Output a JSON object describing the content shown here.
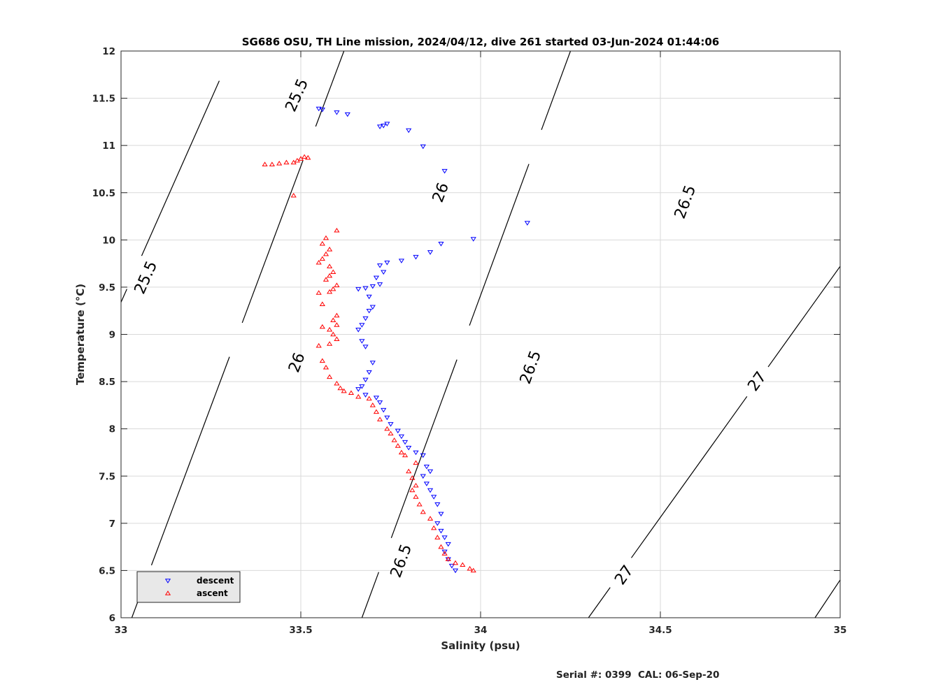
{
  "footer": {
    "serial": "Serial #: 0399  CAL: 06-Sep-20"
  },
  "colors": {
    "descent": "#0000ff",
    "ascent": "#ff0000",
    "contour": "#000000",
    "grid": "#d9d9d9",
    "legend_bg": "#e8e8e8"
  },
  "chart_data": {
    "type": "scatter",
    "title": "SG686 OSU, TH Line mission, 2024/04/12, dive 261 started 03-Jun-2024 01:44:06",
    "xlabel": "Salinity (psu)",
    "ylabel": "Temperature (°C)",
    "xlim": [
      33,
      35
    ],
    "ylim": [
      6,
      12
    ],
    "xticks": [
      "33",
      "33.5",
      "34",
      "34.5",
      "35"
    ],
    "yticks": [
      "6",
      "6.5",
      "7",
      "7.5",
      "8",
      "8.5",
      "9",
      "9.5",
      "10",
      "10.5",
      "11",
      "11.5",
      "12"
    ],
    "grid": true,
    "legend_position": "bottom-left",
    "series": [
      {
        "name": "descent",
        "marker": "triangle-down",
        "color": "#0000ff",
        "points": [
          [
            33.55,
            11.39
          ],
          [
            33.56,
            11.38
          ],
          [
            33.6,
            11.35
          ],
          [
            33.63,
            11.33
          ],
          [
            33.74,
            11.23
          ],
          [
            33.72,
            11.2
          ],
          [
            33.73,
            11.21
          ],
          [
            33.8,
            11.16
          ],
          [
            33.84,
            10.99
          ],
          [
            33.9,
            10.73
          ],
          [
            34.13,
            10.18
          ],
          [
            33.98,
            10.01
          ],
          [
            33.89,
            9.96
          ],
          [
            33.86,
            9.87
          ],
          [
            33.82,
            9.82
          ],
          [
            33.78,
            9.78
          ],
          [
            33.74,
            9.76
          ],
          [
            33.72,
            9.73
          ],
          [
            33.73,
            9.66
          ],
          [
            33.71,
            9.6
          ],
          [
            33.72,
            9.53
          ],
          [
            33.7,
            9.51
          ],
          [
            33.68,
            9.49
          ],
          [
            33.66,
            9.48
          ],
          [
            33.69,
            9.4
          ],
          [
            33.7,
            9.29
          ],
          [
            33.69,
            9.25
          ],
          [
            33.68,
            9.17
          ],
          [
            33.67,
            9.1
          ],
          [
            33.66,
            9.05
          ],
          [
            33.67,
            8.93
          ],
          [
            33.68,
            8.87
          ],
          [
            33.7,
            8.7
          ],
          [
            33.69,
            8.6
          ],
          [
            33.68,
            8.52
          ],
          [
            33.67,
            8.45
          ],
          [
            33.66,
            8.42
          ],
          [
            33.68,
            8.36
          ],
          [
            33.71,
            8.33
          ],
          [
            33.72,
            8.28
          ],
          [
            33.73,
            8.2
          ],
          [
            33.74,
            8.12
          ],
          [
            33.75,
            8.05
          ],
          [
            33.77,
            7.98
          ],
          [
            33.78,
            7.92
          ],
          [
            33.79,
            7.86
          ],
          [
            33.8,
            7.8
          ],
          [
            33.82,
            7.75
          ],
          [
            33.84,
            7.72
          ],
          [
            33.85,
            7.6
          ],
          [
            33.86,
            7.55
          ],
          [
            33.84,
            7.5
          ],
          [
            33.85,
            7.42
          ],
          [
            33.86,
            7.35
          ],
          [
            33.87,
            7.28
          ],
          [
            33.88,
            7.2
          ],
          [
            33.89,
            7.1
          ],
          [
            33.88,
            7.0
          ],
          [
            33.89,
            6.92
          ],
          [
            33.9,
            6.85
          ],
          [
            33.91,
            6.78
          ],
          [
            33.9,
            6.7
          ],
          [
            33.91,
            6.62
          ],
          [
            33.92,
            6.55
          ],
          [
            33.93,
            6.5
          ]
        ]
      },
      {
        "name": "ascent",
        "marker": "triangle-up",
        "color": "#ff0000",
        "points": [
          [
            33.4,
            10.8
          ],
          [
            33.42,
            10.8
          ],
          [
            33.44,
            10.81
          ],
          [
            33.46,
            10.82
          ],
          [
            33.48,
            10.82
          ],
          [
            33.49,
            10.84
          ],
          [
            33.5,
            10.86
          ],
          [
            33.51,
            10.88
          ],
          [
            33.52,
            10.87
          ],
          [
            33.48,
            10.47
          ],
          [
            33.6,
            10.1
          ],
          [
            33.57,
            10.02
          ],
          [
            33.56,
            9.96
          ],
          [
            33.58,
            9.9
          ],
          [
            33.57,
            9.85
          ],
          [
            33.56,
            9.8
          ],
          [
            33.55,
            9.76
          ],
          [
            33.58,
            9.72
          ],
          [
            33.59,
            9.66
          ],
          [
            33.58,
            9.62
          ],
          [
            33.57,
            9.58
          ],
          [
            33.6,
            9.52
          ],
          [
            33.59,
            9.48
          ],
          [
            33.58,
            9.45
          ],
          [
            33.55,
            9.44
          ],
          [
            33.56,
            9.32
          ],
          [
            33.6,
            9.2
          ],
          [
            33.59,
            9.15
          ],
          [
            33.6,
            9.1
          ],
          [
            33.58,
            9.05
          ],
          [
            33.56,
            9.08
          ],
          [
            33.59,
            9.0
          ],
          [
            33.6,
            8.95
          ],
          [
            33.58,
            8.9
          ],
          [
            33.55,
            8.88
          ],
          [
            33.56,
            8.72
          ],
          [
            33.57,
            8.65
          ],
          [
            33.58,
            8.55
          ],
          [
            33.6,
            8.48
          ],
          [
            33.61,
            8.43
          ],
          [
            33.62,
            8.4
          ],
          [
            33.64,
            8.38
          ],
          [
            33.66,
            8.34
          ],
          [
            33.69,
            8.32
          ],
          [
            33.7,
            8.25
          ],
          [
            33.71,
            8.18
          ],
          [
            33.72,
            8.1
          ],
          [
            33.74,
            8.0
          ],
          [
            33.75,
            7.95
          ],
          [
            33.76,
            7.88
          ],
          [
            33.77,
            7.82
          ],
          [
            33.78,
            7.75
          ],
          [
            33.79,
            7.72
          ],
          [
            33.82,
            7.64
          ],
          [
            33.8,
            7.55
          ],
          [
            33.81,
            7.48
          ],
          [
            33.82,
            7.4
          ],
          [
            33.81,
            7.35
          ],
          [
            33.82,
            7.28
          ],
          [
            33.83,
            7.2
          ],
          [
            33.84,
            7.12
          ],
          [
            33.86,
            7.05
          ],
          [
            33.87,
            6.95
          ],
          [
            33.88,
            6.85
          ],
          [
            33.89,
            6.75
          ],
          [
            33.9,
            6.68
          ],
          [
            33.91,
            6.62
          ],
          [
            33.93,
            6.58
          ],
          [
            33.95,
            6.56
          ],
          [
            33.97,
            6.52
          ],
          [
            33.98,
            6.5
          ]
        ]
      }
    ],
    "density_contours": [
      {
        "label": "25.5",
        "points": [
          [
            33.0,
            9.34
          ],
          [
            33.31,
            12.0
          ]
        ],
        "label_positions": [
          [
            33.07,
            9.6
          ],
          [
            33.49,
            11.53
          ]
        ]
      },
      {
        "label": "26",
        "points": [
          [
            33.03,
            6.0
          ],
          [
            33.62,
            12.0
          ]
        ],
        "label_positions": [
          [
            33.12,
            6.3
          ],
          [
            33.49,
            8.7
          ],
          [
            33.89,
            10.5
          ]
        ]
      },
      {
        "label": "26.5",
        "points": [
          [
            33.67,
            6.0
          ],
          [
            34.25,
            12.0
          ]
        ],
        "label_positions": [
          [
            33.78,
            6.6
          ],
          [
            34.14,
            8.65
          ],
          [
            34.57,
            10.4
          ]
        ]
      },
      {
        "label": "27",
        "points": [
          [
            34.3,
            6.0
          ],
          [
            35.0,
            9.72
          ]
        ],
        "label_positions": [
          [
            34.4,
            6.45
          ],
          [
            34.77,
            8.5
          ]
        ]
      },
      {
        "label": "",
        "points": [
          [
            34.93,
            6.0
          ],
          [
            35.0,
            6.4
          ]
        ],
        "label_positions": []
      }
    ]
  }
}
